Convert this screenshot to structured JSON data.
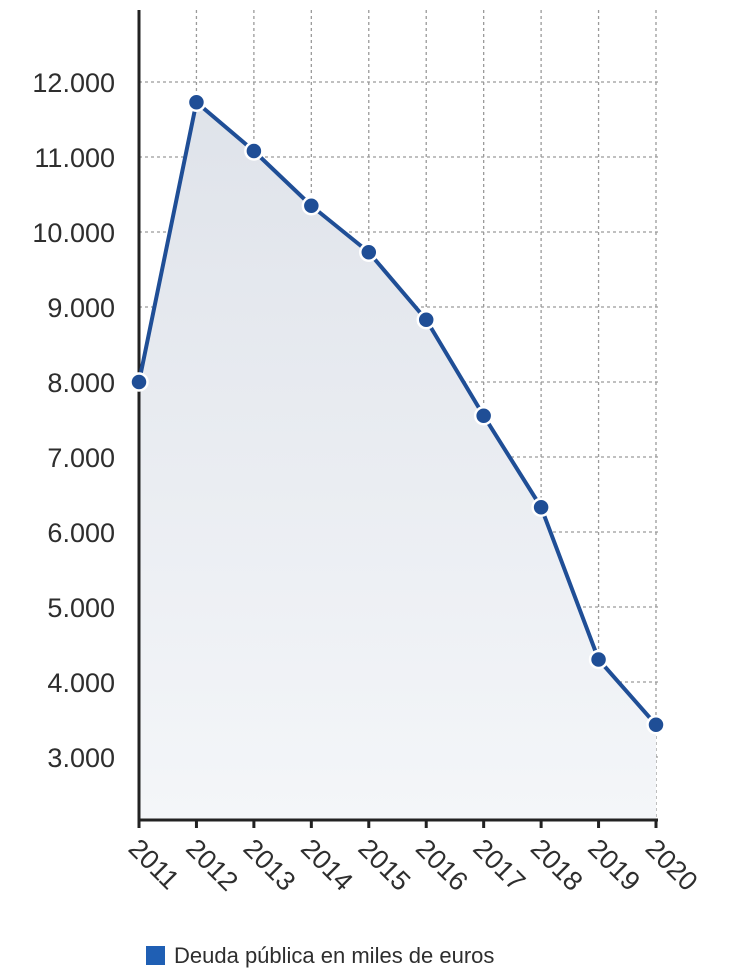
{
  "chart_data": {
    "type": "area",
    "title": "",
    "xlabel": "",
    "ylabel": "",
    "x": [
      "2011",
      "2012",
      "2013",
      "2014",
      "2015",
      "2016",
      "2017",
      "2018",
      "2019",
      "2020"
    ],
    "series": [
      {
        "name": "Deuda pública en miles de euros",
        "values": [
          8000,
          11730,
          11080,
          10350,
          9730,
          8830,
          7550,
          6330,
          4300,
          3430
        ]
      }
    ],
    "ylim": [
      2100,
      13000
    ],
    "yticks": [
      3000,
      4000,
      5000,
      6000,
      7000,
      8000,
      9000,
      10000,
      11000,
      12000
    ],
    "ytick_labels": [
      "3.000",
      "4.000",
      "5.000",
      "6.000",
      "7.000",
      "8.000",
      "9.000",
      "10.000",
      "11.000",
      "12.000"
    ],
    "grid": true,
    "legend": "bottom",
    "colors": {
      "line": "#1f4e96",
      "fill_top": "#dfe3ea",
      "fill_bottom": "#f4f6f9",
      "legend_swatch": "#1f5fb4"
    }
  }
}
